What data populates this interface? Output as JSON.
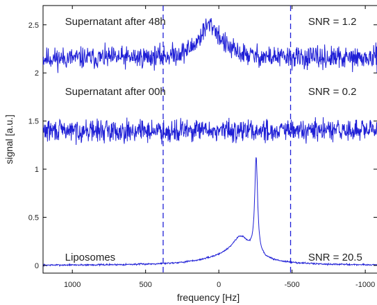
{
  "chart_data": {
    "type": "line",
    "xlabel": "frequency [Hz]",
    "ylabel": "signal [a.u.]",
    "xlim": [
      1200,
      -1080
    ],
    "ylim": [
      -0.08,
      2.7
    ],
    "x_reversed": true,
    "x_ticks": [
      1000,
      500,
      0,
      -500,
      -1000
    ],
    "x_tick_labels": [
      "1000",
      "500",
      "0",
      "-500",
      "-1000"
    ],
    "y_ticks": [
      0,
      0.5,
      1,
      1.5,
      2,
      2.5
    ],
    "y_tick_labels": [
      "0",
      "0.5",
      "1",
      "1.5",
      "2",
      "2.5"
    ],
    "grid": false,
    "series_color": "#1f1fd6",
    "vlines": [
      {
        "x": 380,
        "style": "dashed"
      },
      {
        "x": -490,
        "style": "dashed"
      }
    ],
    "series": [
      {
        "baseline": 2.15,
        "noise": 0.08,
        "peak": {
          "center": 60,
          "height": 0.35,
          "width": 90
        },
        "noise_seed": 11
      },
      {
        "baseline": 1.4,
        "noise": 0.08,
        "noise_seed": 29
      },
      {
        "baseline": 0.0,
        "noise": 0.006,
        "peak": {
          "center": -255,
          "height": 1.0,
          "width": 12
        },
        "shoulder": {
          "center": -150,
          "height": 0.2,
          "width": 70
        },
        "broad": {
          "center": -100,
          "height": 0.1,
          "width": 220
        },
        "noise_seed": 7
      }
    ],
    "annotations": [
      {
        "text": "Supernatant after 48h",
        "x": 1050,
        "y": 2.5
      },
      {
        "text": "SNR = 1.2",
        "x": -610,
        "y": 2.5
      },
      {
        "text": "Supernatant after 00h",
        "x": 1050,
        "y": 1.77
      },
      {
        "text": "SNR = 0.2",
        "x": -610,
        "y": 1.77
      },
      {
        "text": "Liposomes",
        "x": 1050,
        "y": 0.05
      },
      {
        "text": "SNR = 20.5",
        "x": -610,
        "y": 0.05
      }
    ]
  }
}
